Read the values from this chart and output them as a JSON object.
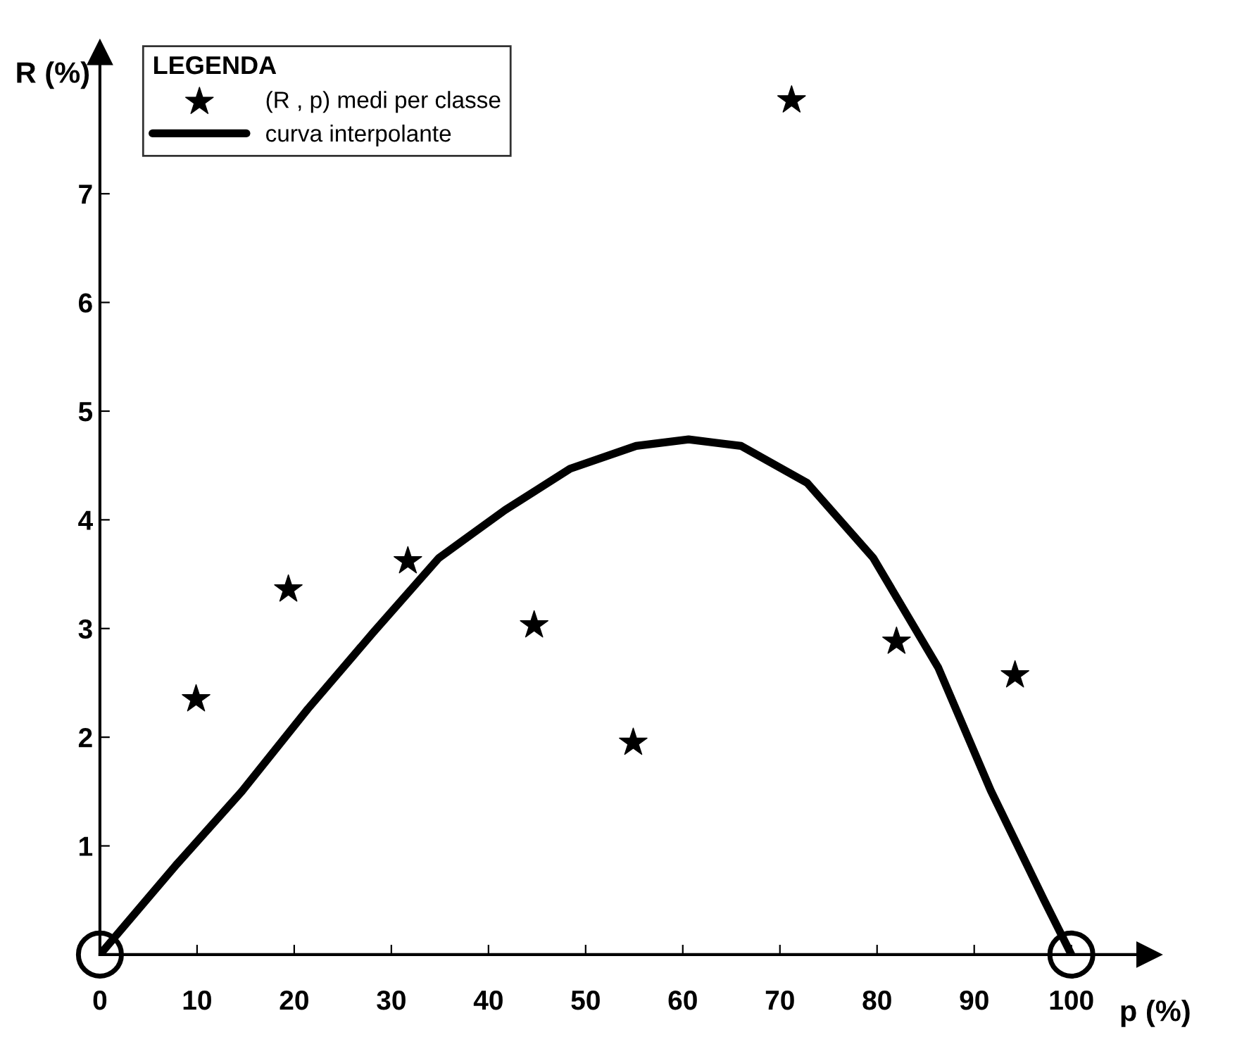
{
  "chart_data": {
    "type": "scatter",
    "xlabel": "p (%)",
    "ylabel": "R (%)",
    "legend_title": "LEGENDA",
    "legend": "top left",
    "grid": false,
    "xlim": [
      0,
      108
    ],
    "ylim": [
      0,
      8.3
    ],
    "xticks": [
      0,
      10,
      20,
      30,
      40,
      50,
      60,
      70,
      80,
      90,
      100
    ],
    "yticks": [
      1,
      2,
      3,
      4,
      5,
      6,
      7
    ],
    "series": [
      {
        "name": "(R , p) medi per classe",
        "marker": "star",
        "color": "#000000",
        "x": [
          9.9,
          19.4,
          31.7,
          44.7,
          54.9,
          71.2,
          82,
          94.2
        ],
        "values": [
          2.35,
          3.36,
          3.62,
          3.03,
          1.95,
          7.86,
          2.88,
          2.57
        ]
      },
      {
        "name": "curva interpolante",
        "type": "line",
        "marker": "none",
        "line_style": "solid",
        "color": "#000000",
        "x": [
          0,
          7.8,
          14.6,
          21.4,
          28.1,
          34.9,
          41.7,
          48.4,
          55.2,
          60.6,
          66,
          72.8,
          79.6,
          86.3,
          91.7,
          97.2,
          100
        ],
        "values": [
          0,
          0.82,
          1.5,
          2.26,
          2.96,
          3.65,
          4.09,
          4.47,
          4.68,
          4.74,
          4.68,
          4.34,
          3.65,
          2.64,
          1.51,
          0.5,
          0
        ]
      }
    ]
  }
}
